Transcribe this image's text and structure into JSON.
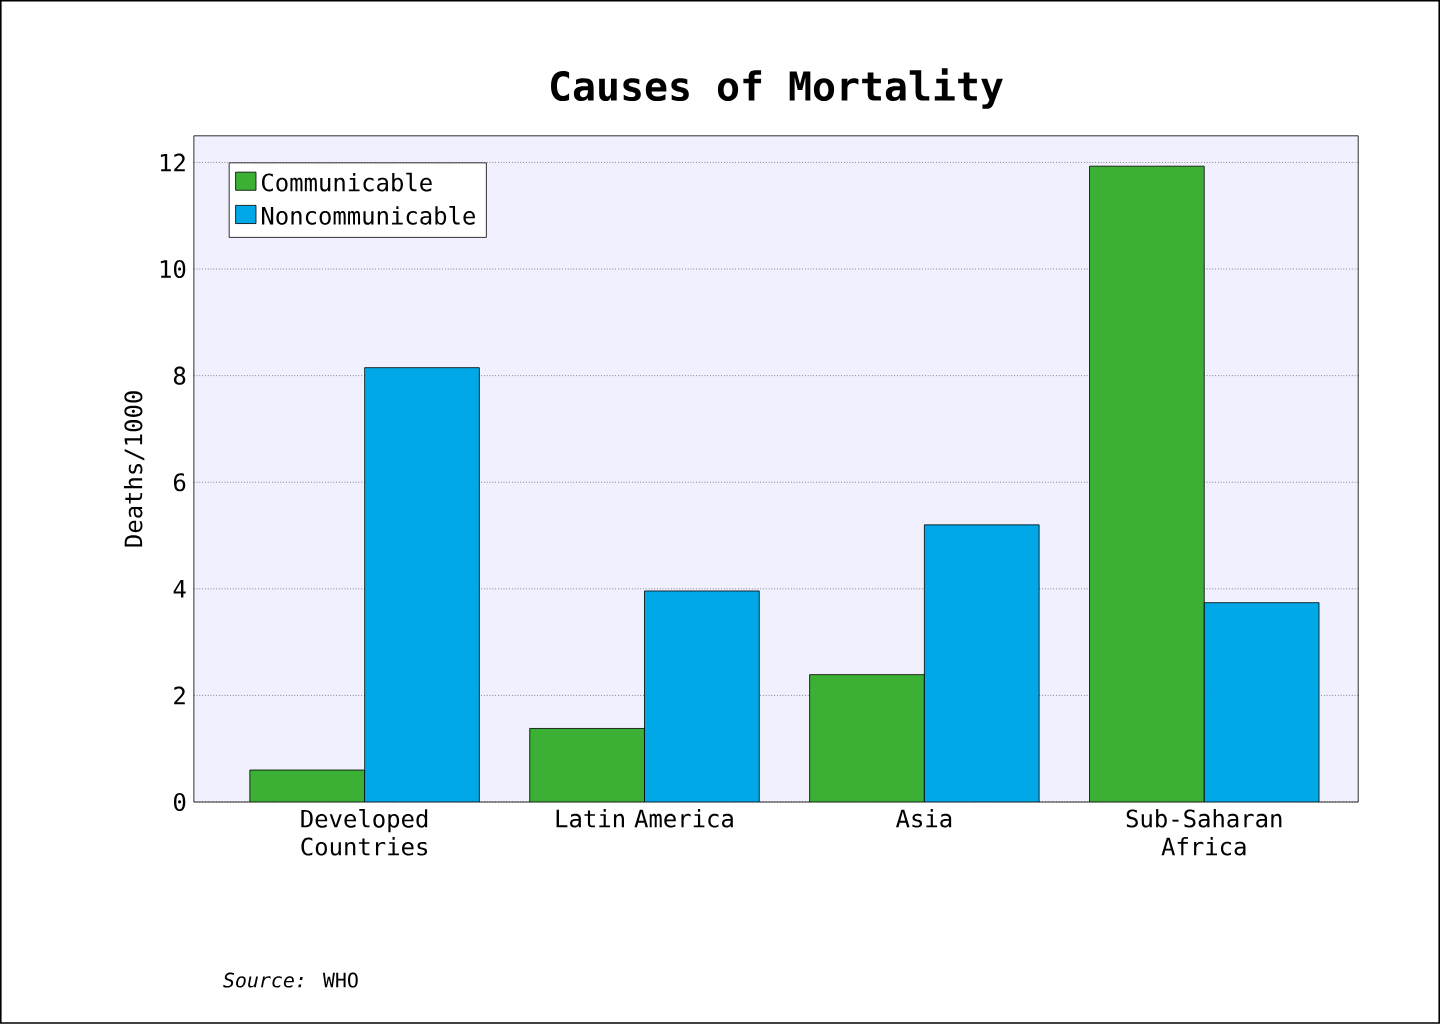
{
  "chart_data": {
    "type": "bar",
    "title": "Causes of Mortality",
    "ylabel": "Deaths/1000",
    "categories": [
      "Developed Countries",
      "Latin America",
      "Asia",
      "Sub-Saharan Africa"
    ],
    "series": [
      {
        "name": "Communicable",
        "color": "#3cb034",
        "values": [
          0.6,
          1.38,
          2.39,
          11.93
        ]
      },
      {
        "name": "Noncommunicable",
        "color": "#00a8e8",
        "values": [
          8.15,
          3.96,
          5.2,
          3.74
        ]
      }
    ],
    "ylim": [
      0,
      12.5
    ],
    "yticks": [
      0,
      2,
      4,
      6,
      8,
      10,
      12
    ],
    "grid": "y",
    "legend": "top left",
    "annotations": [
      "*Source:* WHO"
    ]
  }
}
